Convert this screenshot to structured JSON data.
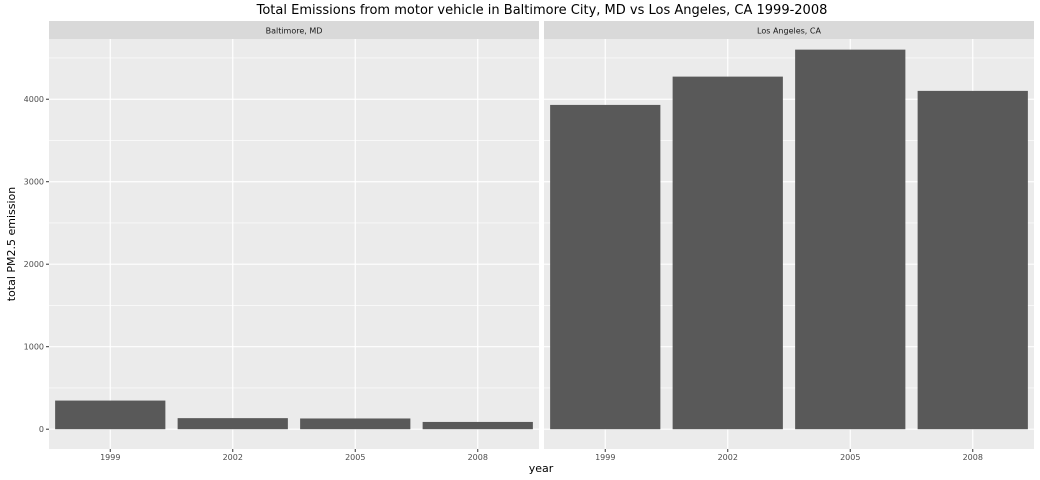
{
  "chart_data": {
    "type": "bar",
    "title": "Total Emissions from motor vehicle in Baltimore City, MD vs Los Angeles, CA 1999-2008",
    "xlabel": "year",
    "ylabel": "total PM2.5 emission",
    "ylim": [
      -240,
      4730
    ],
    "yticks": [
      0,
      1000,
      2000,
      3000,
      4000
    ],
    "categories": [
      "1999",
      "2002",
      "2005",
      "2008"
    ],
    "grid": true,
    "bar_color": "#595959",
    "panel_background": "#ebebeb",
    "strip_background": "#d9d9d9",
    "facets": [
      {
        "name": "Baltimore, MD",
        "values": [
          347,
          134,
          130,
          88
        ]
      },
      {
        "name": "Los Angeles, CA",
        "values": [
          3931,
          4274,
          4601,
          4101
        ]
      }
    ]
  }
}
